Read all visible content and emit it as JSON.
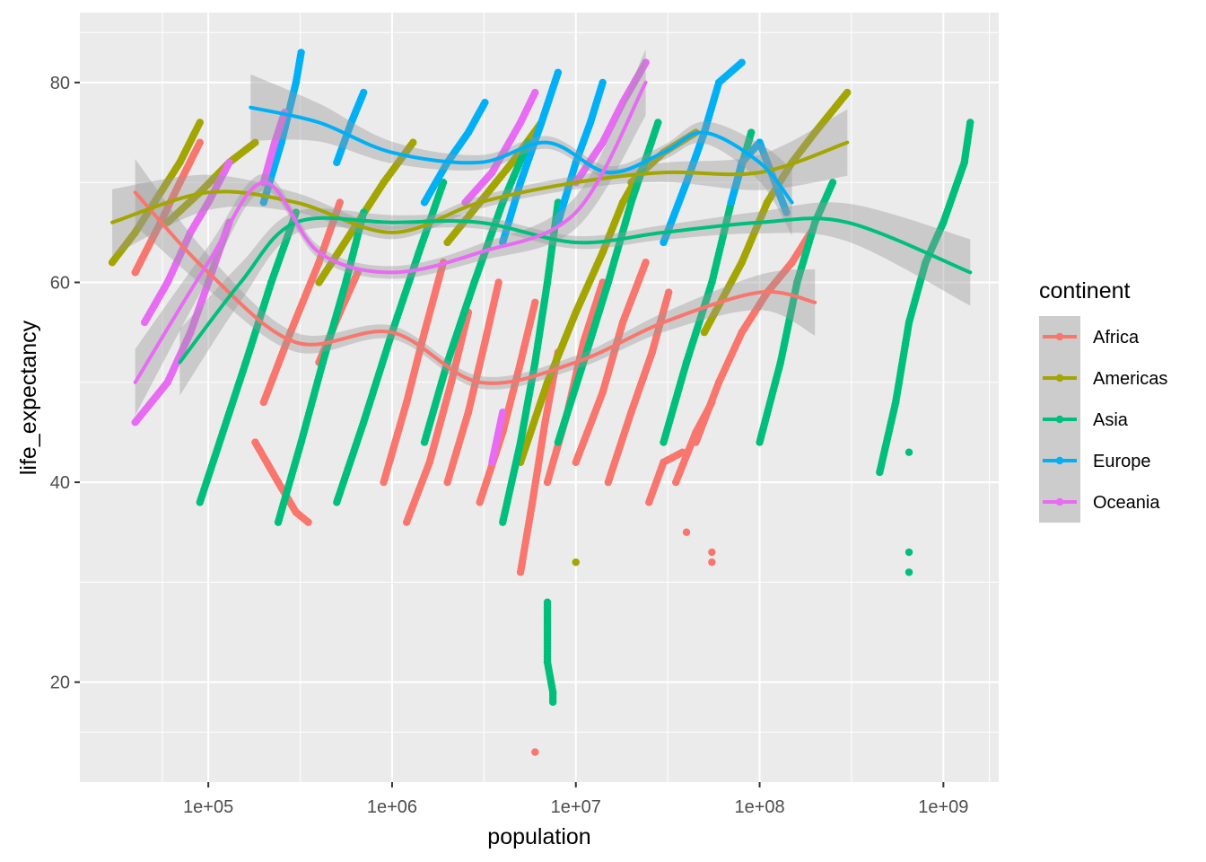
{
  "chart_data": {
    "type": "scatter",
    "xlabel": "population",
    "ylabel": "life_expectancy",
    "x_scale": "log10",
    "xlim": [
      20000,
      2000000000
    ],
    "ylim": [
      10,
      87
    ],
    "x_ticks": [
      100000,
      1000000,
      10000000,
      100000000,
      1000000000
    ],
    "x_tick_labels": [
      "1e+05",
      "1e+06",
      "1e+07",
      "1e+08",
      "1e+09"
    ],
    "y_ticks": [
      20,
      40,
      60,
      80
    ],
    "y_tick_labels": [
      "20",
      "40",
      "60",
      "80"
    ],
    "grid": true,
    "smooth": "loess with confidence band",
    "legend": {
      "title": "continent",
      "position": "right",
      "entries": [
        "Africa",
        "Americas",
        "Asia",
        "Europe",
        "Oceania"
      ]
    },
    "series": [
      {
        "name": "Africa",
        "color": "#F8766D",
        "trajectories": [
          [
            [
              40000,
              61
            ],
            [
              55000,
              66
            ],
            [
              70000,
              70
            ],
            [
              90000,
              74
            ]
          ],
          [
            [
              180000,
              44
            ],
            [
              240000,
              40
            ],
            [
              300000,
              37
            ],
            [
              350000,
              36
            ]
          ],
          [
            [
              200000,
              48
            ],
            [
              280000,
              55
            ],
            [
              400000,
              62
            ],
            [
              520000,
              68
            ]
          ],
          [
            [
              400000,
              52
            ],
            [
              520000,
              57
            ],
            [
              650000,
              61
            ]
          ],
          [
            [
              900000,
              40
            ],
            [
              1200000,
              48
            ],
            [
              1500000,
              55
            ],
            [
              1900000,
              62
            ]
          ],
          [
            [
              1200000,
              36
            ],
            [
              1600000,
              42
            ],
            [
              2100000,
              50
            ],
            [
              2600000,
              57
            ]
          ],
          [
            [
              2000000,
              40
            ],
            [
              2600000,
              47
            ],
            [
              3200000,
              54
            ],
            [
              3800000,
              60
            ]
          ],
          [
            [
              3000000,
              38
            ],
            [
              4000000,
              45
            ],
            [
              5000000,
              52
            ],
            [
              6000000,
              58
            ]
          ],
          [
            [
              5000000,
              31
            ],
            [
              5800000,
              38
            ],
            [
              6800000,
              46
            ],
            [
              8000000,
              53
            ]
          ],
          [
            [
              7000000,
              40
            ],
            [
              9000000,
              47
            ],
            [
              11000000,
              54
            ],
            [
              14000000,
              60
            ]
          ],
          [
            [
              10000000,
              42
            ],
            [
              14000000,
              49
            ],
            [
              18000000,
              56
            ],
            [
              24000000,
              62
            ]
          ],
          [
            [
              15000000,
              40
            ],
            [
              20000000,
              47
            ],
            [
              26000000,
              53
            ],
            [
              32000000,
              59
            ]
          ],
          [
            [
              25000000,
              38
            ],
            [
              30000000,
              42
            ],
            [
              38000000,
              43
            ]
          ],
          [
            [
              35000000,
              40
            ],
            [
              45000000,
              45
            ],
            [
              55000000,
              48
            ]
          ],
          [
            [
              45000000,
              44
            ],
            [
              60000000,
              50
            ],
            [
              80000000,
              55
            ],
            [
              110000000,
              59
            ],
            [
              150000000,
              62
            ],
            [
              190000000,
              65
            ]
          ],
          [
            [
              6000000,
              13
            ]
          ],
          [
            [
              40000000,
              35
            ]
          ],
          [
            [
              55000000,
              33
            ]
          ],
          [
            [
              55000000,
              32
            ]
          ]
        ],
        "smooth": [
          [
            40000,
            69
          ],
          [
            100000,
            61
          ],
          [
            300000,
            54
          ],
          [
            1000000,
            55
          ],
          [
            3000000,
            50
          ],
          [
            10000000,
            52
          ],
          [
            30000000,
            56
          ],
          [
            100000000,
            59
          ],
          [
            200000000,
            58
          ]
        ]
      },
      {
        "name": "Americas",
        "color": "#A3A500",
        "trajectories": [
          [
            [
              30000,
              62
            ],
            [
              40000,
              65
            ],
            [
              55000,
              69
            ],
            [
              70000,
              72
            ],
            [
              90000,
              76
            ]
          ],
          [
            [
              60000,
              66
            ],
            [
              90000,
              69
            ],
            [
              130000,
              72
            ],
            [
              180000,
              74
            ]
          ],
          [
            [
              400000,
              60
            ],
            [
              600000,
              65
            ],
            [
              900000,
              70
            ],
            [
              1300000,
              74
            ]
          ],
          [
            [
              2000000,
              64
            ],
            [
              3000000,
              68
            ],
            [
              4500000,
              72
            ],
            [
              6500000,
              76
            ]
          ],
          [
            [
              5000000,
              42
            ],
            [
              7000000,
              50
            ],
            [
              10000000,
              57
            ],
            [
              14000000,
              63
            ],
            [
              18000000,
              68
            ],
            [
              24000000,
              72
            ]
          ],
          [
            [
              10000000,
              32
            ]
          ],
          [
            [
              20000000,
              70
            ],
            [
              30000000,
              73
            ],
            [
              45000000,
              75
            ]
          ],
          [
            [
              50000000,
              55
            ],
            [
              80000000,
              62
            ],
            [
              110000000,
              68
            ],
            [
              150000000,
              72
            ],
            [
              200000000,
              75
            ],
            [
              300000000,
              79
            ]
          ]
        ],
        "smooth": [
          [
            30000,
            66
          ],
          [
            100000,
            69
          ],
          [
            300000,
            68
          ],
          [
            1000000,
            65
          ],
          [
            3000000,
            68
          ],
          [
            10000000,
            70
          ],
          [
            30000000,
            71
          ],
          [
            100000000,
            71
          ],
          [
            300000000,
            74
          ]
        ]
      },
      {
        "name": "Asia",
        "color": "#00BF7D",
        "trajectories": [
          [
            [
              90000,
              38
            ],
            [
              120000,
              45
            ],
            [
              160000,
              52
            ],
            [
              220000,
              60
            ],
            [
              300000,
              67
            ]
          ],
          [
            [
              240000,
              36
            ],
            [
              320000,
              44
            ],
            [
              420000,
              52
            ],
            [
              560000,
              60
            ],
            [
              700000,
              67
            ]
          ],
          [
            [
              500000,
              38
            ],
            [
              700000,
              46
            ],
            [
              1000000,
              55
            ],
            [
              1400000,
              63
            ],
            [
              1900000,
              70
            ]
          ],
          [
            [
              1500000,
              44
            ],
            [
              2000000,
              52
            ],
            [
              2800000,
              60
            ],
            [
              4000000,
              68
            ],
            [
              5500000,
              74
            ]
          ],
          [
            [
              4000000,
              36
            ],
            [
              5000000,
              44
            ],
            [
              6000000,
              52
            ],
            [
              7000000,
              60
            ],
            [
              8000000,
              68
            ]
          ],
          [
            [
              7000000,
              28
            ],
            [
              7000000,
              22
            ],
            [
              7500000,
              19
            ],
            [
              7500000,
              18
            ]
          ],
          [
            [
              8000000,
              44
            ],
            [
              11000000,
              52
            ],
            [
              15000000,
              60
            ],
            [
              20000000,
              68
            ],
            [
              28000000,
              76
            ]
          ],
          [
            [
              30000000,
              44
            ],
            [
              40000000,
              52
            ],
            [
              55000000,
              60
            ],
            [
              70000000,
              68
            ],
            [
              90000000,
              75
            ]
          ],
          [
            [
              100000000,
              44
            ],
            [
              130000000,
              52
            ],
            [
              160000000,
              60
            ],
            [
              200000000,
              66
            ],
            [
              250000000,
              70
            ]
          ],
          [
            [
              450000000,
              41
            ],
            [
              550000000,
              48
            ],
            [
              650000000,
              56
            ],
            [
              800000000,
              62
            ],
            [
              1000000000,
              66
            ],
            [
              1300000000,
              72
            ],
            [
              1400000000,
              76
            ]
          ],
          [
            [
              650000000,
              43
            ]
          ],
          [
            [
              650000000,
              33
            ]
          ],
          [
            [
              650000000,
              31
            ]
          ]
        ],
        "smooth": [
          [
            70000,
            52
          ],
          [
            150000,
            60
          ],
          [
            300000,
            66
          ],
          [
            1000000,
            66
          ],
          [
            3000000,
            66
          ],
          [
            10000000,
            64
          ],
          [
            30000000,
            65
          ],
          [
            100000000,
            66
          ],
          [
            300000000,
            66
          ],
          [
            1400000000,
            61
          ]
        ]
      },
      {
        "name": "Europe",
        "color": "#00B0F6",
        "trajectories": [
          [
            [
              200000,
              68
            ],
            [
              250000,
              74
            ],
            [
              300000,
              80
            ],
            [
              320000,
              83
            ]
          ],
          [
            [
              500000,
              72
            ],
            [
              600000,
              76
            ],
            [
              700000,
              79
            ]
          ],
          [
            [
              1500000,
              68
            ],
            [
              2000000,
              72
            ],
            [
              2600000,
              75
            ],
            [
              3200000,
              78
            ]
          ],
          [
            [
              4000000,
              64
            ],
            [
              5000000,
              70
            ],
            [
              6500000,
              76
            ],
            [
              8000000,
              81
            ]
          ],
          [
            [
              8000000,
              66
            ],
            [
              10000000,
              72
            ],
            [
              12000000,
              76
            ],
            [
              14000000,
              80
            ]
          ],
          [
            [
              30000000,
              64
            ],
            [
              40000000,
              70
            ],
            [
              50000000,
              75
            ],
            [
              60000000,
              80
            ],
            [
              80000000,
              82
            ]
          ],
          [
            [
              70000000,
              68
            ],
            [
              80000000,
              72
            ],
            [
              100000000,
              74
            ],
            [
              140000000,
              67
            ]
          ]
        ],
        "smooth": [
          [
            170000,
            77.5
          ],
          [
            400000,
            76
          ],
          [
            1000000,
            73
          ],
          [
            3000000,
            72
          ],
          [
            7000000,
            74
          ],
          [
            15000000,
            71
          ],
          [
            30000000,
            73
          ],
          [
            50000000,
            75
          ],
          [
            100000000,
            72
          ],
          [
            150000000,
            68
          ]
        ]
      },
      {
        "name": "Oceania",
        "color": "#E76BF3",
        "trajectories": [
          [
            [
              40000,
              46
            ],
            [
              60000,
              50
            ],
            [
              80000,
              55
            ],
            [
              100000,
              60
            ],
            [
              130000,
              66
            ]
          ],
          [
            [
              45000,
              56
            ],
            [
              60000,
              60
            ],
            [
              80000,
              65
            ],
            [
              100000,
              68
            ],
            [
              130000,
              72
            ]
          ],
          [
            [
              200000,
              70
            ],
            [
              230000,
              74
            ],
            [
              260000,
              77
            ]
          ],
          [
            [
              2500000,
              68
            ],
            [
              3500000,
              71
            ],
            [
              5000000,
              76
            ],
            [
              6000000,
              79
            ]
          ],
          [
            [
              10000000,
              70
            ],
            [
              14000000,
              74
            ],
            [
              18000000,
              78
            ],
            [
              24000000,
              82
            ]
          ],
          [
            [
              3500000,
              42
            ],
            [
              4000000,
              47
            ]
          ]
        ],
        "smooth": [
          [
            40000,
            50
          ],
          [
            100000,
            62
          ],
          [
            200000,
            70
          ],
          [
            400000,
            63
          ],
          [
            1000000,
            61
          ],
          [
            3000000,
            63
          ],
          [
            10000000,
            67
          ],
          [
            24000000,
            80
          ]
        ]
      }
    ]
  }
}
